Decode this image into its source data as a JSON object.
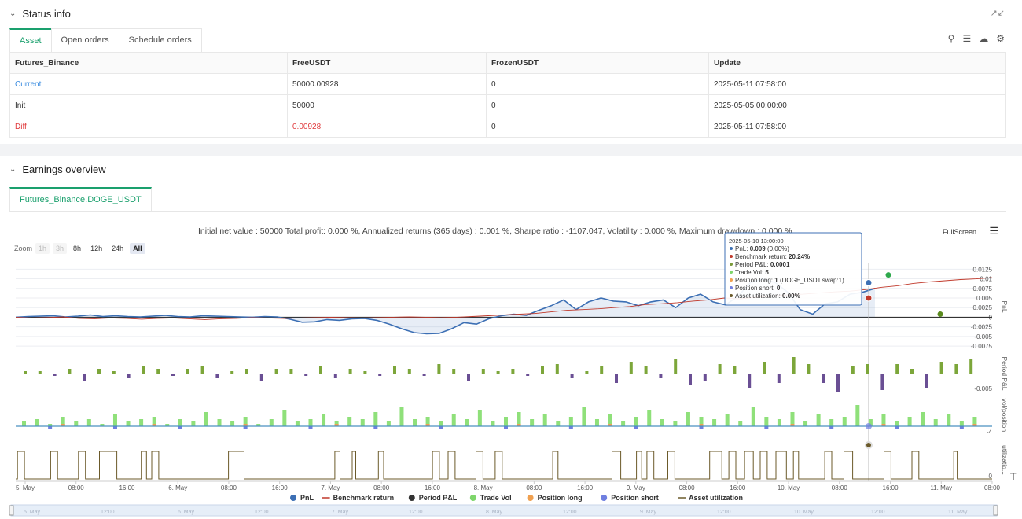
{
  "status": {
    "title": "Status info",
    "tabs": [
      "Asset",
      "Open orders",
      "Schedule orders"
    ],
    "table": {
      "headers": [
        "Futures_Binance",
        "FreeUSDT",
        "FrozenUSDT",
        "Update"
      ],
      "rows": [
        [
          "Current",
          "50000.00928",
          "0",
          "2025-05-11 07:58:00"
        ],
        [
          "Init",
          "50000",
          "0",
          "2025-05-05 00:00:00"
        ],
        [
          "Diff",
          "0.00928",
          "0",
          "2025-05-11 07:58:00"
        ]
      ]
    }
  },
  "earnings": {
    "title": "Earnings overview",
    "tab": "Futures_Binance.DOGE_USDT",
    "summary": "Initial net value : 50000 Total profit: 0.000 %, Annualized returns (365 days) : 0.001 %, Sharpe ratio : -1107.047, Volatility : 0.000 %, Maximum drawdown : 0.000 %",
    "fullscreen": "FullScreen",
    "zoom_label": "Zoom",
    "zoom_buttons": [
      "1h",
      "3h",
      "8h",
      "12h",
      "24h",
      "All"
    ],
    "tooltip": {
      "time": "2025-05-10 13:00:00",
      "lines": [
        {
          "label": "PnL: ",
          "value": "0.009",
          "suffix": " (0.00%)",
          "color": "#3c6fb4"
        },
        {
          "label": "Benchmark return: ",
          "value": "20.24%",
          "suffix": "",
          "color": "#c0392b"
        },
        {
          "label": "Period P&L: ",
          "value": "0.0001",
          "suffix": "",
          "color": "#7a9a3a"
        },
        {
          "label": "Trade Vol: ",
          "value": "5",
          "suffix": "",
          "color": "#7ed66b"
        },
        {
          "label": "Position long: ",
          "value": "1",
          "suffix": " (DOGE_USDT.swap:1)",
          "color": "#f0a050"
        },
        {
          "label": "Position short: ",
          "value": "0",
          "suffix": "",
          "color": "#6f7fe0"
        },
        {
          "label": "Asset utilization: ",
          "value": "0.00%",
          "suffix": "",
          "color": "#6b5a2a"
        }
      ]
    },
    "axis_labels": {
      "pnl": "PnL",
      "period": "Period P&L",
      "vol": "vol/position",
      "util": "utilizatio..."
    },
    "legend": [
      {
        "name": "PnL",
        "color": "#3c6fb4"
      },
      {
        "name": "Benchmark return",
        "color": "#c0392b"
      },
      {
        "name": "Period P&L",
        "color": "#333333"
      },
      {
        "name": "Trade Vol",
        "color": "#7ed66b"
      },
      {
        "name": "Position long",
        "color": "#f0a050"
      },
      {
        "name": "Position short",
        "color": "#6f7fe0"
      },
      {
        "name": "Asset utilization",
        "color": "#6b5a2a"
      }
    ]
  },
  "chart_data": {
    "type": "line",
    "x_ticks": [
      "5. May",
      "08:00",
      "16:00",
      "6. May",
      "08:00",
      "16:00",
      "7. May",
      "08:00",
      "16:00",
      "8. May",
      "08:00",
      "16:00",
      "9. May",
      "08:00",
      "16:00",
      "10. May",
      "08:00",
      "16:00",
      "11. May",
      "08:00"
    ],
    "navigator_ticks": [
      "5. May",
      "12:00",
      "6. May",
      "12:00",
      "7. May",
      "12:00",
      "8. May",
      "12:00",
      "9. May",
      "12:00",
      "10. May",
      "12:00",
      "11. May"
    ],
    "pnl_yticks": [
      "0.0125",
      "0.01",
      "0.0075",
      "0.005",
      "0.0025",
      "0",
      "-0.0025",
      "-0.005",
      "-0.0075"
    ],
    "period_ytick": "-0.005",
    "vol_ytick": "-4",
    "util_ytick": "0",
    "pnl_series": {
      "name": "PnL",
      "ylim": [
        -0.0085,
        0.014
      ],
      "values": [
        0,
        0.0002,
        0.0003,
        0.0004,
        0.0001,
        0.0003,
        0.0006,
        0.0002,
        0.0004,
        0.0002,
        0.0001,
        0.0003,
        0.0005,
        0.0002,
        0.0001,
        0.0004,
        0.0003,
        0.0002,
        0.0001,
        0,
        0.0002,
        0.0001,
        -0.0005,
        -0.0013,
        -0.0012,
        -0.0006,
        -0.0008,
        -0.0004,
        -0.0003,
        -0.0008,
        -0.0018,
        -0.003,
        -0.004,
        -0.0043,
        -0.0042,
        -0.003,
        -0.0014,
        -0.0018,
        -0.0004,
        0.0004,
        0.0008,
        0.0005,
        0.0018,
        0.003,
        0.0045,
        0.002,
        0.004,
        0.005,
        0.0042,
        0.004,
        0.003,
        0.004,
        0.0045,
        0.0025,
        0.005,
        0.006,
        0.004,
        0.0032,
        0.0055,
        0.009,
        0.01,
        0.009,
        0.0065,
        0.002,
        0.0008,
        0.0035,
        0.004,
        0.006,
        0.0065,
        0.0075
      ]
    },
    "benchmark_series": {
      "name": "Benchmark return",
      "values": [
        0,
        -0.0002,
        -0.0001,
        0.0001,
        -0.0003,
        -0.0004,
        -0.0002,
        -0.0003,
        -0.0005,
        -0.0003,
        -0.0002,
        -0.0004,
        -0.0006,
        -0.0004,
        -0.0003,
        -0.0001,
        -0.0002,
        -0.0003,
        -0.0002,
        -0.0001,
        0,
        -0.0001,
        -0.0002,
        -0.0001,
        0,
        0.0001,
        0,
        -0.0001,
        0,
        0.0002,
        0.0004,
        0.0006,
        0.0008,
        0.001,
        0.0014,
        0.0018,
        0.002,
        0.0022,
        0.0025,
        0.0028,
        0.0033,
        0.0035,
        0.0038,
        0.0042,
        0.0045,
        0.005,
        0.0048,
        0.0052,
        0.0055,
        0.0058,
        0.006,
        0.0063,
        0.0066,
        0.0068,
        0.0072,
        0.0078,
        0.0082,
        0.0088,
        0.0092,
        0.0095,
        0.0098,
        0.01,
        0.0103
      ]
    },
    "period_pnl_values": [
      0.0001,
      0.0001,
      -0.0001,
      0.0002,
      -0.0003,
      0.0002,
      0.0001,
      -0.0002,
      0.0003,
      0.0002,
      -0.0001,
      0.0002,
      0.0003,
      -0.0002,
      0.0001,
      0.0002,
      -0.0003,
      0.0002,
      0.0002,
      -0.0001,
      0.0003,
      -0.0002,
      0.0002,
      0.0001,
      -0.0001,
      0.0003,
      0.0002,
      -0.0001,
      0.0004,
      0.0002,
      -0.0003,
      0.0002,
      0.0001,
      0.0002,
      -0.0001,
      0.0003,
      0.0004,
      -0.0002,
      0.0001,
      0.0003,
      -0.0004,
      0.0005,
      0.0003,
      -0.0002,
      0.0006,
      -0.0005,
      -0.0003,
      0.0004,
      0.0003,
      -0.0006,
      0.0005,
      -0.0004,
      0.0007,
      0.0004,
      -0.0004,
      -0.0008,
      0.0003,
      0.0004,
      -0.0007,
      0.0004,
      0.0002,
      -0.0006,
      0.0005,
      0.0004,
      0.0006
    ],
    "trade_vol_values": [
      2,
      3,
      1,
      4,
      2,
      3,
      1,
      5,
      2,
      3,
      4,
      1,
      3,
      2,
      6,
      3,
      2,
      4,
      1,
      3,
      7,
      2,
      3,
      5,
      2,
      4,
      3,
      6,
      2,
      8,
      3,
      4,
      2,
      5,
      3,
      7,
      2,
      4,
      6,
      3,
      5,
      2,
      4,
      8,
      3,
      5,
      2,
      4,
      7,
      3,
      2,
      6,
      4,
      3,
      5,
      2,
      8,
      4,
      3,
      6,
      2,
      5,
      3,
      4,
      9,
      3,
      5,
      2,
      4,
      6,
      3,
      5,
      2,
      4
    ],
    "asset_util_windows": [
      [
        0.1,
        0.5
      ],
      [
        2.0,
        2.4
      ],
      [
        3.6,
        4.0
      ],
      [
        4.8,
        5.8
      ],
      [
        7.2,
        7.5
      ],
      [
        7.8,
        8.2
      ],
      [
        12.2,
        13.1
      ],
      [
        18.3,
        18.6
      ],
      [
        19.3,
        19.5
      ],
      [
        20.8,
        21.1
      ],
      [
        23.9,
        24.3
      ],
      [
        24.8,
        25.2
      ],
      [
        26.4,
        26.8
      ],
      [
        27.5,
        27.9
      ],
      [
        30.8,
        31.1
      ],
      [
        34.2,
        34.7
      ],
      [
        35.6,
        35.9
      ],
      [
        36.2,
        36.6
      ],
      [
        37.4,
        37.8
      ],
      [
        39.8,
        40.5
      ],
      [
        40.9,
        41.3
      ],
      [
        41.8,
        42.3
      ],
      [
        42.7,
        43.1
      ],
      [
        43.6,
        44.2
      ],
      [
        44.6,
        44.9
      ],
      [
        46.4,
        46.8
      ],
      [
        47.5,
        48.0
      ],
      [
        49.8,
        50.2
      ],
      [
        51.4,
        51.8
      ],
      [
        53.8,
        54.0
      ]
    ]
  }
}
